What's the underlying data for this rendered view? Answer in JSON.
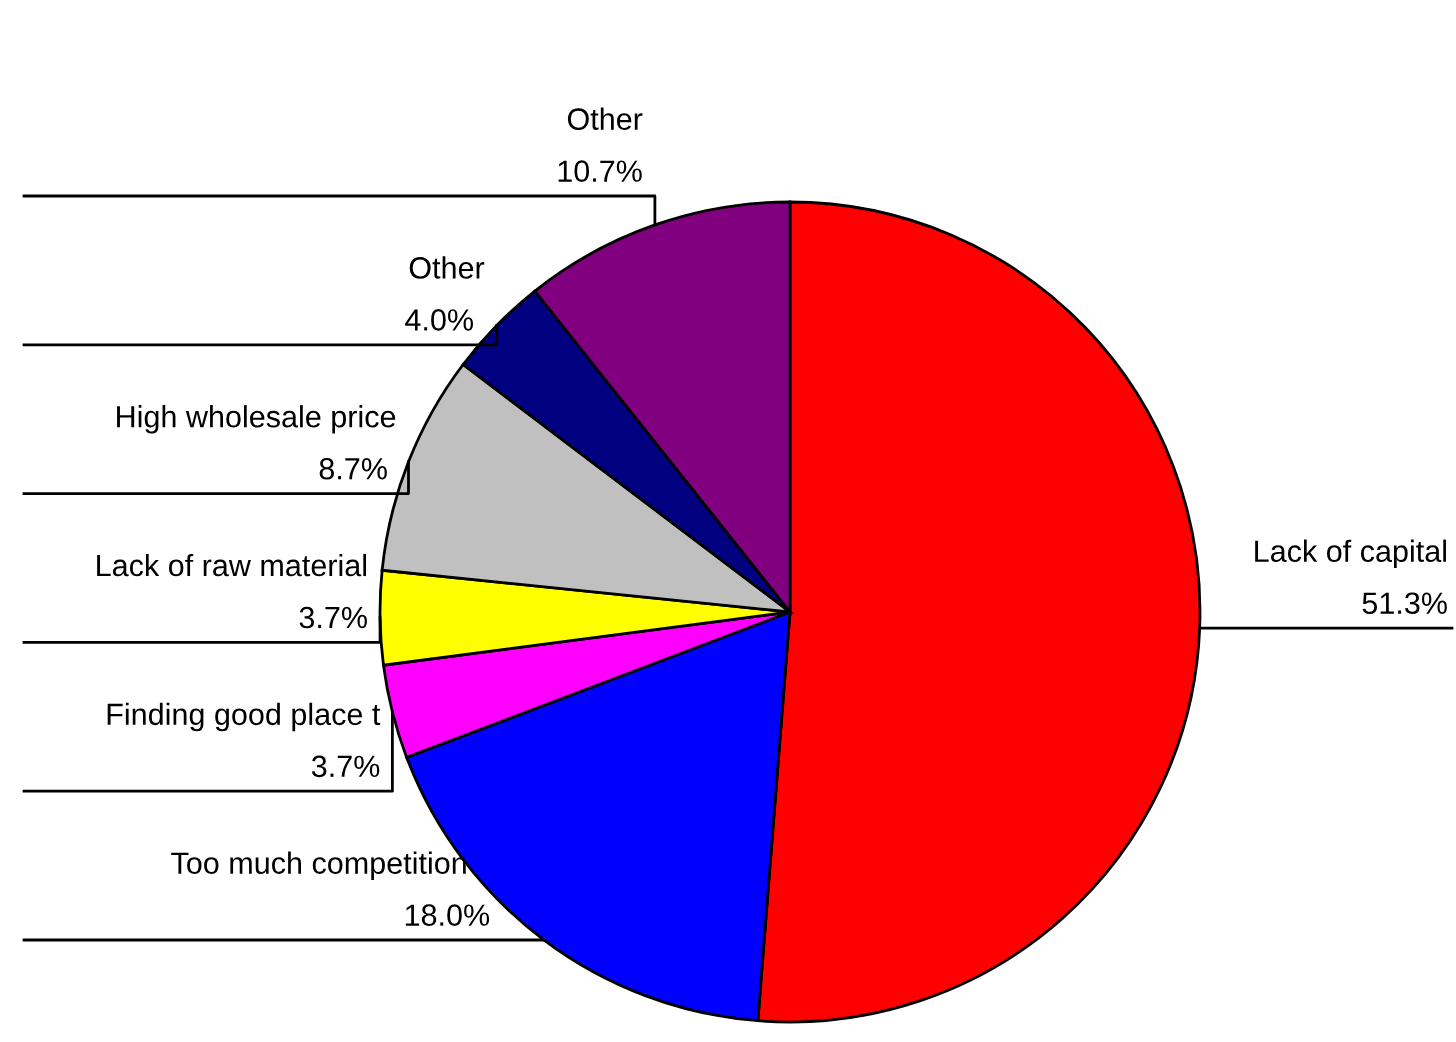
{
  "chart_data": {
    "type": "pie",
    "categories": [
      "Lack of capital",
      "Too much competition",
      "Finding good place t",
      "Lack of raw material",
      "High wholesale price",
      "Other",
      "Other"
    ],
    "values": [
      51.3,
      18.0,
      3.7,
      3.7,
      8.7,
      4.0,
      10.7
    ],
    "value_labels": [
      "51.3%",
      "18.0%",
      "3.7%",
      "3.7%",
      "8.7%",
      "4.0%",
      "10.7%"
    ],
    "colors": [
      "#ff0000",
      "#0000ff",
      "#ff00ff",
      "#ffff00",
      "#c0c0c0",
      "#000080",
      "#800080"
    ],
    "legend": false
  }
}
